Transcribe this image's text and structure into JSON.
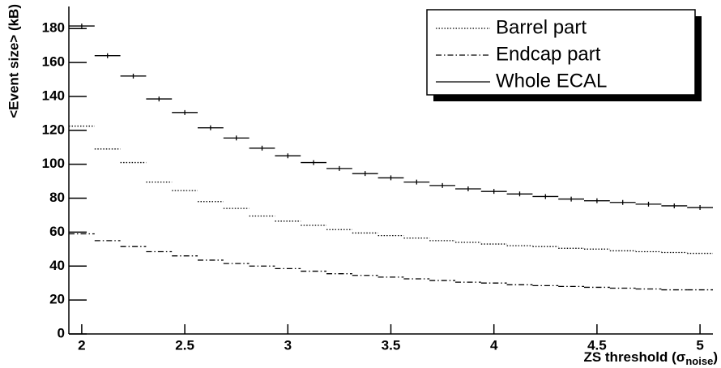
{
  "chart_data": {
    "type": "step",
    "x_label": {
      "text": "ZS threshold (σ",
      "subscript": "noise",
      "close": ")"
    },
    "y_label": "<Event size> (kB)",
    "x": [
      2,
      2.125,
      2.25,
      2.375,
      2.5,
      2.625,
      2.75,
      2.875,
      3,
      3.125,
      3.25,
      3.375,
      3.5,
      3.625,
      3.75,
      3.875,
      4,
      4.125,
      4.25,
      4.375,
      4.5,
      4.625,
      4.75,
      4.875,
      5
    ],
    "series": [
      {
        "name": "Barrel part",
        "color": "#000000",
        "dash": "dotted",
        "values": [
          122.5,
          109,
          101,
          89.5,
          84.5,
          78,
          74,
          69.5,
          66.5,
          64,
          61.5,
          59.5,
          58,
          56.5,
          55,
          54,
          53,
          52,
          51.5,
          50.5,
          50,
          49,
          48.5,
          48,
          47.5
        ]
      },
      {
        "name": "Endcap part",
        "color": "#000000",
        "dash": "dashdot",
        "values": [
          59,
          55,
          51.5,
          48.5,
          46,
          43.5,
          41.5,
          40,
          38.5,
          37,
          35.5,
          34.5,
          33.5,
          32.5,
          31.5,
          30.5,
          30,
          29,
          28.5,
          28,
          27.5,
          27,
          26.5,
          26,
          26
        ]
      },
      {
        "name": "Whole ECAL",
        "color": "#000000",
        "dash": "solid",
        "values": [
          181.5,
          164,
          152,
          138.5,
          130.5,
          121.5,
          115.5,
          109.5,
          105,
          101,
          97.5,
          94.5,
          92,
          89.5,
          87.5,
          85.5,
          84,
          82.5,
          81,
          79.5,
          78.5,
          77.5,
          76.5,
          75.5,
          74.5
        ]
      }
    ],
    "xlim": [
      1.9375,
      5.0625
    ],
    "xticks": [
      2,
      2.5,
      3,
      3.5,
      4,
      4.5,
      5
    ],
    "ylim": [
      0,
      193
    ],
    "yticks": [
      0,
      20,
      40,
      60,
      80,
      100,
      120,
      140,
      160,
      180
    ],
    "legend": "top-right"
  }
}
